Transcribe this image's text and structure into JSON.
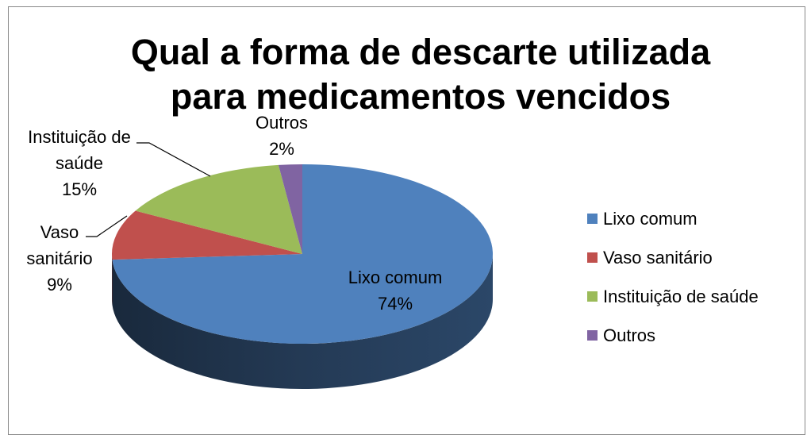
{
  "chart_data": {
    "type": "pie",
    "title": "Qual a forma de descarte utilizada para medicamentos vencidos",
    "categories": [
      "Lixo comum",
      "Vaso sanitário",
      "Instituição de saúde",
      "Outros"
    ],
    "values": [
      74,
      9,
      15,
      2
    ],
    "value_labels": [
      "74%",
      "9%",
      "15%",
      "2%"
    ],
    "colors": [
      "#4f81bd",
      "#c0504d",
      "#9bbb59",
      "#8064a2"
    ],
    "legend": "right",
    "style": "3d"
  }
}
